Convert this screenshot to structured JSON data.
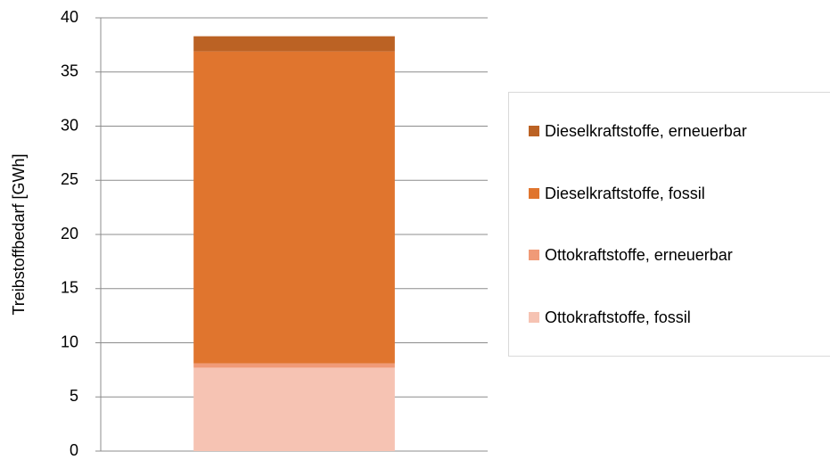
{
  "chart_data": {
    "type": "stacked_bar",
    "categories": [
      null
    ],
    "series": [
      {
        "name": "Ottokraftstoffe, fossil",
        "color": "#f6c3b3",
        "values": [
          7.7
        ]
      },
      {
        "name": "Ottokraftstoffe, erneuerbar",
        "color": "#f09a77",
        "values": [
          0.4
        ]
      },
      {
        "name": "Dieselkraftstoffe, fossil",
        "color": "#e0752e",
        "values": [
          28.8
        ]
      },
      {
        "name": "Dieselkraftstoffe, erneuerbar",
        "color": "#bb6224",
        "values": [
          1.4
        ]
      }
    ],
    "y_label": "Treibstoffbedarf [GWh]",
    "ylim": [
      0,
      40
    ],
    "yticks": [
      0,
      5,
      10,
      15,
      20,
      25,
      30,
      35,
      40
    ],
    "grid": true,
    "legend": "right"
  }
}
